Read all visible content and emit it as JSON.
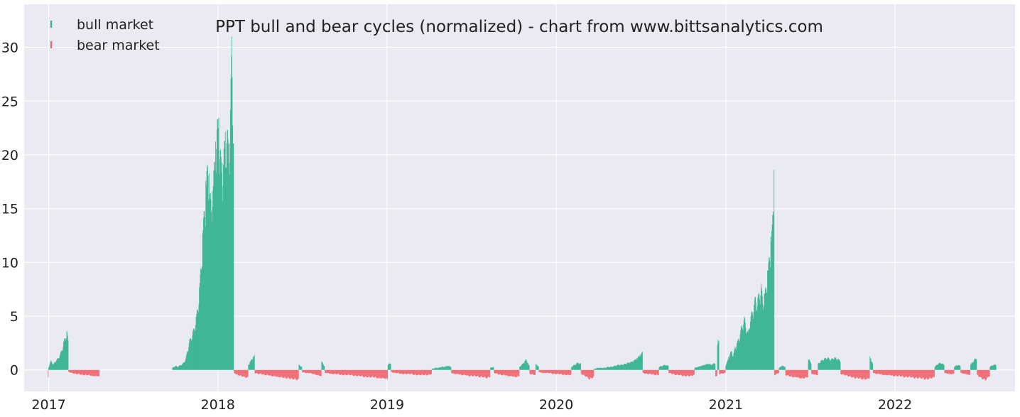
{
  "chart_data": {
    "type": "bar",
    "title": "PPT bull and bear cycles (normalized)  - chart from www.bittsanalytics.com",
    "xlabel": "",
    "ylabel": "",
    "x_ticks": [
      "2017",
      "2018",
      "2019",
      "2020",
      "2021",
      "2022"
    ],
    "y_ticks": [
      "0",
      "5",
      "10",
      "15",
      "20",
      "25",
      "30"
    ],
    "xlim": [
      "2016-11-09",
      "2022-09-17"
    ],
    "ylim": [
      -2,
      34
    ],
    "grid": true,
    "legend": "top-left",
    "background_color": "#EAEAF2",
    "grid_color": "#ffffff",
    "series": [
      {
        "name": "bull market",
        "color": "#2AB08B",
        "segments": [
          {
            "start": "2017-01-01",
            "end": "2017-02-13",
            "values": [
              0.3,
              0.6,
              0.9,
              0.8,
              0.5,
              0.7,
              0.9,
              1.0,
              1.1,
              1.3,
              1.5,
              1.8,
              2.2,
              2.6,
              3.0,
              3.4,
              3.7,
              2.8
            ]
          },
          {
            "start": "2017-09-25",
            "end": "2018-02-05",
            "values": [
              0.2,
              0.3,
              0.4,
              0.3,
              0.4,
              0.5,
              0.6,
              0.8,
              1.2,
              2.0,
              2.8,
              3.2,
              3.6,
              4.2,
              5.0,
              6.2,
              8.0,
              10.5,
              13.5,
              16.0,
              18.5,
              19.8,
              17.0,
              15.5,
              18.0,
              20.5,
              22.5,
              24.2,
              21.5,
              19.0,
              20.5,
              22.0,
              23.5,
              21.0,
              25.0,
              31.6,
              23.0
            ]
          },
          {
            "start": "2018-03-08",
            "end": "2018-03-22",
            "values": [
              0.5,
              1.0,
              1.4
            ]
          },
          {
            "start": "2018-06-25",
            "end": "2018-07-02",
            "values": [
              0.5,
              0.3
            ]
          },
          {
            "start": "2018-08-13",
            "end": "2018-08-20",
            "values": [
              0.8,
              0.4
            ]
          },
          {
            "start": "2019-01-03",
            "end": "2019-01-10",
            "values": [
              0.5,
              0.7
            ]
          },
          {
            "start": "2019-04-08",
            "end": "2019-05-20",
            "values": [
              0.1,
              0.2,
              0.2,
              0.3,
              0.3,
              0.4,
              0.3
            ]
          },
          {
            "start": "2019-08-12",
            "end": "2019-08-20",
            "values": [
              0.2,
              0.3
            ]
          },
          {
            "start": "2019-10-14",
            "end": "2019-11-05",
            "values": [
              0.3,
              0.6,
              1.0,
              0.4
            ]
          },
          {
            "start": "2019-11-18",
            "end": "2019-11-25",
            "values": [
              0.6,
              0.3
            ]
          },
          {
            "start": "2020-02-03",
            "end": "2020-02-24",
            "values": [
              0.3,
              0.5,
              0.7,
              0.6
            ]
          },
          {
            "start": "2020-03-23",
            "end": "2020-07-06",
            "values": [
              0.1,
              0.2,
              0.2,
              0.2,
              0.3,
              0.3,
              0.4,
              0.5,
              0.5,
              0.6,
              0.7,
              0.8,
              1.0,
              1.3,
              1.7
            ]
          },
          {
            "start": "2020-08-10",
            "end": "2020-08-31",
            "values": [
              0.3,
              0.4,
              0.5,
              0.4
            ]
          },
          {
            "start": "2020-10-26",
            "end": "2020-12-10",
            "values": [
              0.2,
              0.3,
              0.4,
              0.5,
              0.6,
              0.5,
              0.7
            ]
          },
          {
            "start": "2020-12-14",
            "end": "2020-12-18",
            "values": [
              2.8
            ]
          },
          {
            "start": "2021-01-01",
            "end": "2021-04-16",
            "values": [
              0.5,
              0.9,
              1.5,
              1.8,
              1.4,
              2.2,
              2.6,
              3.0,
              3.8,
              4.5,
              5.0,
              4.2,
              3.5,
              4.8,
              5.5,
              6.2,
              7.0,
              6.5,
              7.5,
              8.0,
              6.8,
              7.2,
              8.5,
              10.0,
              12.0,
              13.5,
              18.6
            ]
          },
          {
            "start": "2021-04-26",
            "end": "2021-05-10",
            "values": [
              0.2,
              0.4,
              0.3
            ]
          },
          {
            "start": "2021-06-28",
            "end": "2021-07-05",
            "values": [
              1.2,
              0.6
            ]
          },
          {
            "start": "2021-07-19",
            "end": "2021-09-06",
            "values": [
              0.6,
              0.9,
              1.1,
              1.2,
              1.0,
              1.2,
              1.1,
              0.9
            ]
          },
          {
            "start": "2021-11-08",
            "end": "2021-11-15",
            "values": [
              1.3,
              0.6
            ]
          },
          {
            "start": "2022-03-28",
            "end": "2022-04-18",
            "values": [
              0.3,
              0.6,
              0.7,
              0.5
            ]
          },
          {
            "start": "2022-05-09",
            "end": "2022-05-23",
            "values": [
              0.3,
              0.5,
              0.4
            ]
          },
          {
            "start": "2022-06-13",
            "end": "2022-06-27",
            "values": [
              0.5,
              0.9,
              1.2
            ]
          },
          {
            "start": "2022-07-25",
            "end": "2022-08-08",
            "values": [
              0.3,
              0.5,
              0.5
            ]
          }
        ]
      },
      {
        "name": "bear market",
        "color": "#F0606A",
        "segments": [
          {
            "start": "2016-12-31",
            "end": "2017-01-01",
            "values": [
              -0.8
            ]
          },
          {
            "start": "2017-02-13",
            "end": "2017-04-21",
            "values": [
              -0.2,
              -0.3,
              -0.4,
              -0.4,
              -0.5,
              -0.5,
              -0.5,
              -0.6,
              -0.6,
              -0.6
            ]
          },
          {
            "start": "2018-02-05",
            "end": "2018-03-08",
            "values": [
              -0.3,
              -0.5,
              -0.6,
              -0.7,
              -0.8
            ]
          },
          {
            "start": "2018-03-22",
            "end": "2018-06-25",
            "values": [
              -0.3,
              -0.4,
              -0.4,
              -0.5,
              -0.5,
              -0.6,
              -0.6,
              -0.7,
              -0.7,
              -0.8,
              -0.8,
              -0.9,
              -0.9,
              -1.0
            ]
          },
          {
            "start": "2018-07-02",
            "end": "2018-08-13",
            "values": [
              -0.2,
              -0.3,
              -0.3,
              -0.4,
              -0.5,
              -0.6
            ]
          },
          {
            "start": "2018-08-20",
            "end": "2019-01-03",
            "values": [
              -0.3,
              -0.3,
              -0.4,
              -0.4,
              -0.4,
              -0.5,
              -0.5,
              -0.5,
              -0.5,
              -0.6,
              -0.6,
              -0.6,
              -0.7,
              -0.7,
              -0.7,
              -0.7,
              -0.8,
              -0.8,
              -0.8,
              -0.9
            ]
          },
          {
            "start": "2019-01-10",
            "end": "2019-04-08",
            "values": [
              -0.2,
              -0.3,
              -0.3,
              -0.4,
              -0.4,
              -0.4,
              -0.4,
              -0.5,
              -0.5,
              -0.5,
              -0.5,
              -0.5,
              -0.4
            ]
          },
          {
            "start": "2019-05-20",
            "end": "2019-08-12",
            "values": [
              -0.3,
              -0.4,
              -0.4,
              -0.5,
              -0.5,
              -0.6,
              -0.6,
              -0.6,
              -0.7,
              -0.7,
              -0.8,
              -0.7
            ]
          },
          {
            "start": "2019-08-20",
            "end": "2019-10-14",
            "values": [
              -0.3,
              -0.4,
              -0.5,
              -0.5,
              -0.6,
              -0.6,
              -0.7,
              -0.6
            ]
          },
          {
            "start": "2019-11-05",
            "end": "2019-11-18",
            "values": [
              -0.4,
              -0.5
            ]
          },
          {
            "start": "2019-11-25",
            "end": "2020-02-03",
            "values": [
              -0.2,
              -0.3,
              -0.3,
              -0.3,
              -0.4,
              -0.4,
              -0.4,
              -0.5,
              -0.5,
              -0.5
            ]
          },
          {
            "start": "2020-02-24",
            "end": "2020-03-23",
            "values": [
              -0.4,
              -0.6,
              -0.9,
              -0.7
            ]
          },
          {
            "start": "2020-07-06",
            "end": "2020-08-10",
            "values": [
              -0.3,
              -0.4,
              -0.4,
              -0.5,
              -0.5
            ]
          },
          {
            "start": "2020-08-31",
            "end": "2020-10-26",
            "values": [
              -0.3,
              -0.4,
              -0.5,
              -0.5,
              -0.6,
              -0.6,
              -0.6,
              -0.5
            ]
          },
          {
            "start": "2020-12-10",
            "end": "2020-12-14",
            "values": [
              -0.6
            ]
          },
          {
            "start": "2020-12-18",
            "end": "2021-01-01",
            "values": [
              -0.4,
              -0.3
            ]
          },
          {
            "start": "2021-04-16",
            "end": "2021-04-26",
            "values": [
              -0.5,
              -0.3
            ]
          },
          {
            "start": "2021-05-10",
            "end": "2021-06-28",
            "values": [
              -0.5,
              -0.6,
              -0.7,
              -0.7,
              -0.8,
              -0.8,
              -0.7
            ]
          },
          {
            "start": "2021-07-05",
            "end": "2021-07-19",
            "values": [
              -0.4,
              -0.5
            ]
          },
          {
            "start": "2021-09-06",
            "end": "2021-11-08",
            "values": [
              -0.4,
              -0.5,
              -0.6,
              -0.7,
              -0.8,
              -0.8,
              -0.9,
              -0.9,
              -0.8
            ]
          },
          {
            "start": "2021-11-15",
            "end": "2022-03-28",
            "values": [
              -0.3,
              -0.4,
              -0.4,
              -0.5,
              -0.5,
              -0.5,
              -0.6,
              -0.6,
              -0.6,
              -0.7,
              -0.7,
              -0.7,
              -0.8,
              -0.8,
              -0.8,
              -0.9,
              -0.9,
              -0.8,
              -0.7
            ]
          },
          {
            "start": "2022-04-18",
            "end": "2022-05-09",
            "values": [
              -0.3,
              -0.4,
              -0.4
            ]
          },
          {
            "start": "2022-05-23",
            "end": "2022-06-13",
            "values": [
              -0.3,
              -0.4,
              -0.5
            ]
          },
          {
            "start": "2022-06-27",
            "end": "2022-07-25",
            "values": [
              -0.5,
              -0.8,
              -1.0,
              -0.6
            ]
          }
        ]
      }
    ]
  }
}
